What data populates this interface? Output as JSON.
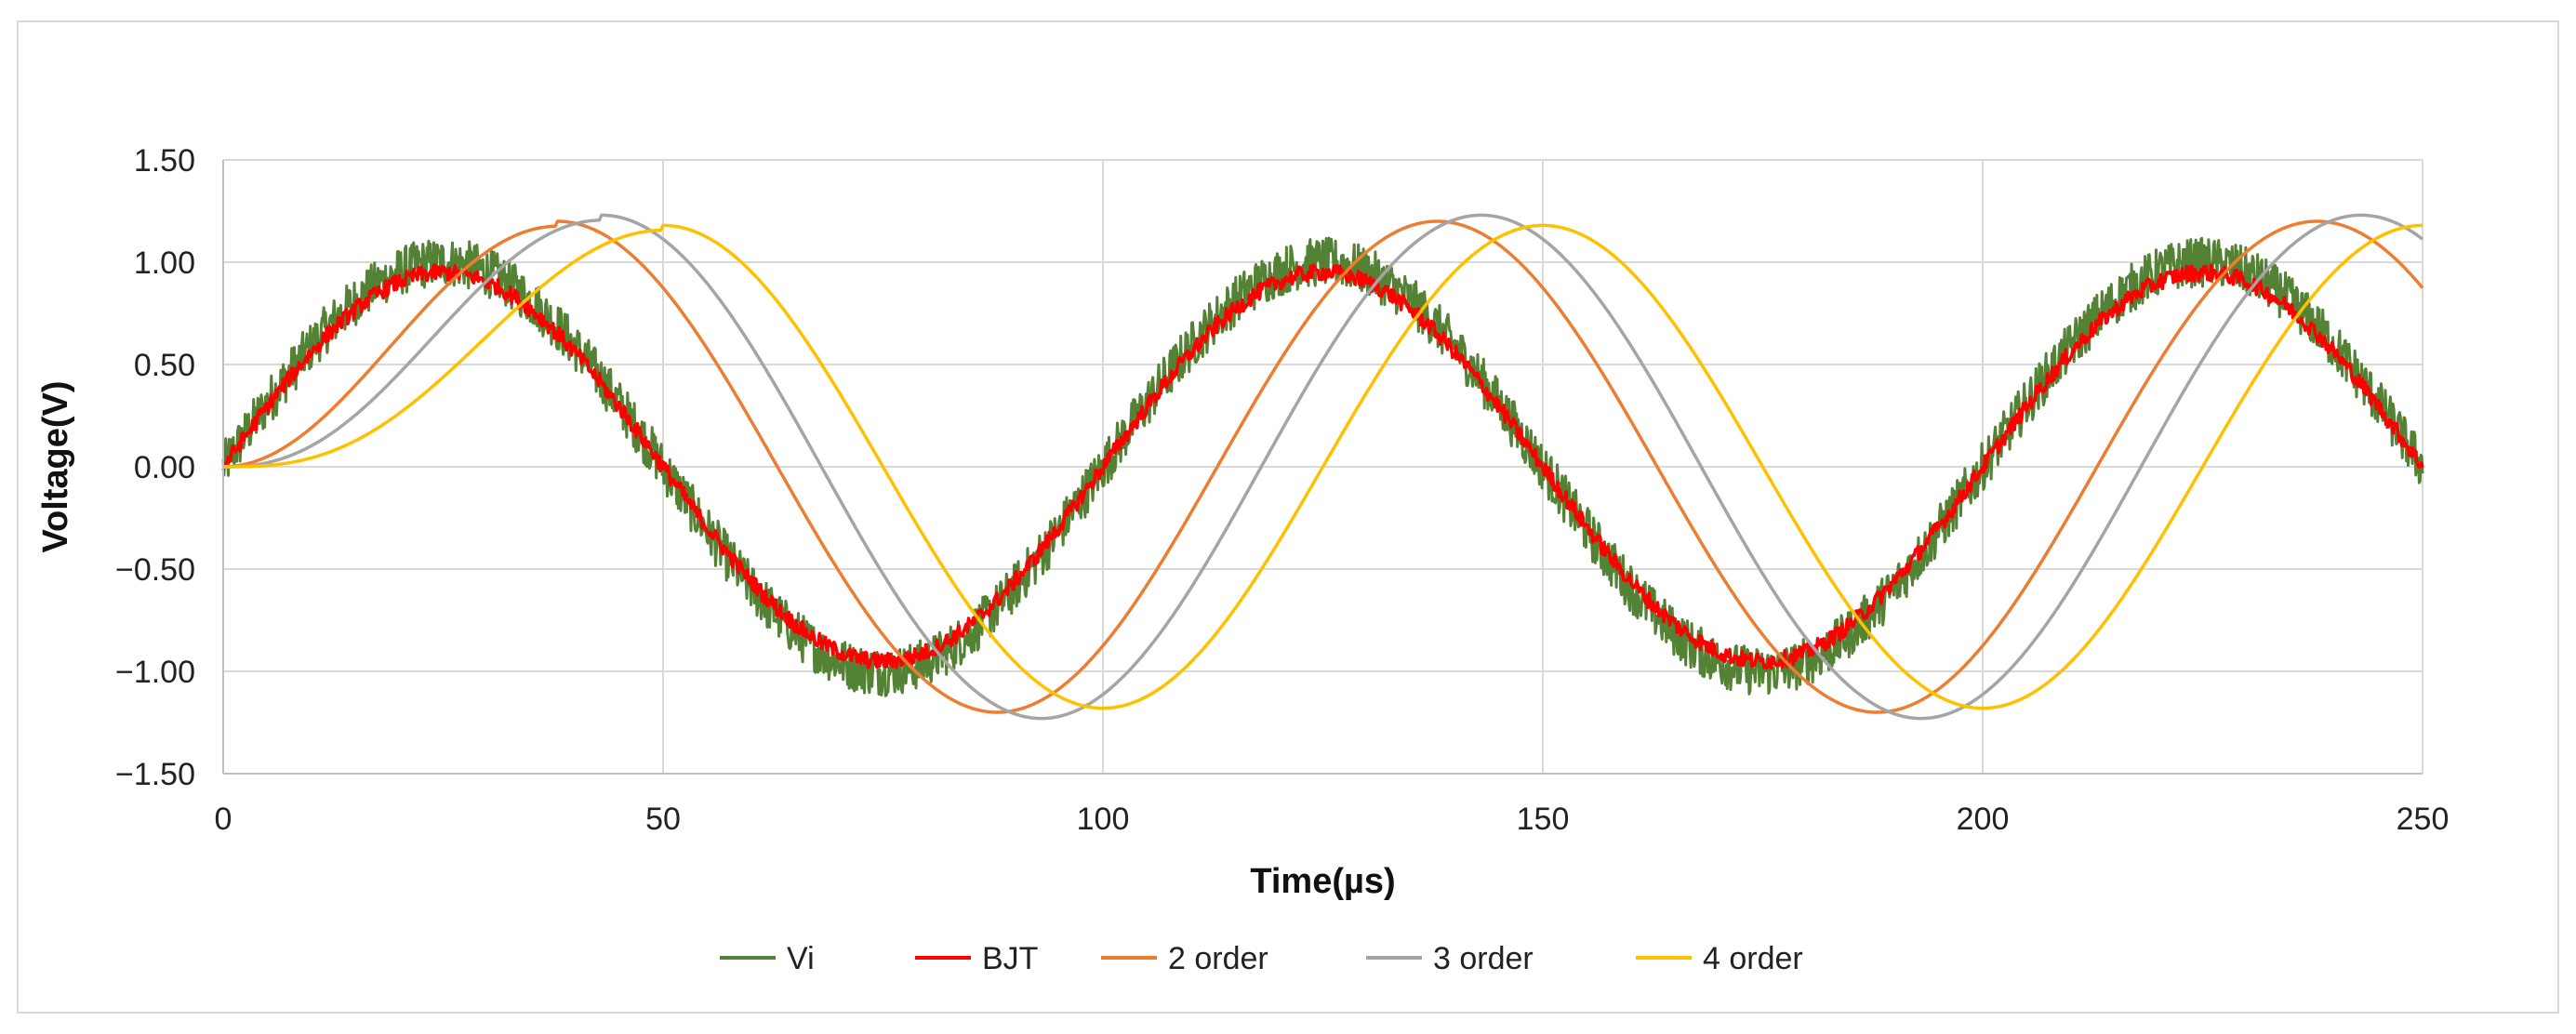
{
  "chart_data": {
    "type": "line",
    "title": "",
    "xlabel": "Time(µs)",
    "ylabel": "Voltage(V)",
    "xlim": [
      0,
      250
    ],
    "ylim": [
      -1.5,
      1.5
    ],
    "x_ticks": [
      0,
      50,
      100,
      150,
      200,
      250
    ],
    "y_ticks": [
      -1.5,
      -1.0,
      -0.5,
      0.0,
      0.5,
      1.0,
      1.5
    ],
    "x_tick_labels": [
      "0",
      "50",
      "100",
      "150",
      "200",
      "250"
    ],
    "y_tick_labels": [
      "−1.50",
      "−1.00",
      "−0.50",
      "0.00",
      "0.50",
      "1.00",
      "1.50"
    ],
    "grid": true,
    "legend_position": "bottom",
    "series": [
      {
        "name": "Vi",
        "color": "#548235",
        "waveform": "sine",
        "amplitude": 1.0,
        "period": 100,
        "delay": 0,
        "noise": 0.12,
        "x": [
          0,
          12.5,
          25,
          37.5,
          50,
          62.5,
          75,
          87.5,
          100,
          112.5,
          125,
          137.5,
          150,
          162.5,
          175,
          187.5,
          200,
          212.5,
          225,
          237.5,
          250
        ],
        "y": [
          0,
          0.71,
          1.0,
          0.71,
          0,
          -0.71,
          -1.0,
          -0.71,
          0,
          0.71,
          1.0,
          0.71,
          0,
          -0.71,
          -1.0,
          -0.71,
          0,
          0.71,
          1.0,
          0.71,
          0
        ]
      },
      {
        "name": "BJT",
        "color": "#ff0000",
        "waveform": "sine",
        "amplitude": 0.95,
        "period": 100,
        "delay": 0,
        "noise": 0.04,
        "x": [
          0,
          12.5,
          25,
          37.5,
          50,
          62.5,
          75,
          87.5,
          100,
          112.5,
          125,
          137.5,
          150,
          162.5,
          175,
          187.5,
          200,
          212.5,
          225,
          237.5,
          250
        ],
        "y": [
          0,
          0.67,
          0.95,
          0.67,
          0,
          -0.67,
          -0.95,
          -0.67,
          0,
          0.67,
          0.95,
          0.67,
          0,
          -0.67,
          -0.95,
          -0.67,
          0,
          0.67,
          0.95,
          0.67,
          0
        ]
      },
      {
        "name": "2 order",
        "color": "#ed7d31",
        "waveform": "filtered-sine",
        "amplitude": 1.2,
        "period": 100,
        "delay": 13,
        "order": 2,
        "x": [
          0,
          13,
          38,
          63,
          88,
          113,
          138,
          163,
          188,
          213,
          238,
          250
        ],
        "y": [
          0,
          0.25,
          1.18,
          0.0,
          -1.2,
          0.0,
          1.21,
          0.0,
          -1.21,
          0.0,
          1.21,
          0.85
        ]
      },
      {
        "name": "3 order",
        "color": "#a5a5a5",
        "waveform": "filtered-sine",
        "amplitude": 1.23,
        "period": 100,
        "delay": 18,
        "order": 3,
        "x": [
          0,
          18,
          43,
          68,
          93,
          118,
          143,
          168,
          193,
          218,
          243,
          250
        ],
        "y": [
          0,
          0.2,
          1.2,
          0.0,
          -1.24,
          0.0,
          1.24,
          0.0,
          -1.24,
          0.0,
          1.24,
          1.09
        ]
      },
      {
        "name": "4 order",
        "color": "#ffc000",
        "waveform": "filtered-sine",
        "amplitude": 1.18,
        "period": 100,
        "delay": 25,
        "order": 4,
        "x": [
          0,
          25,
          50,
          75,
          100,
          125,
          150,
          175,
          200,
          225,
          250
        ],
        "y": [
          0,
          0.2,
          1.12,
          0.0,
          -1.18,
          0.0,
          1.18,
          0.0,
          -1.18,
          0.0,
          1.18
        ]
      }
    ]
  }
}
